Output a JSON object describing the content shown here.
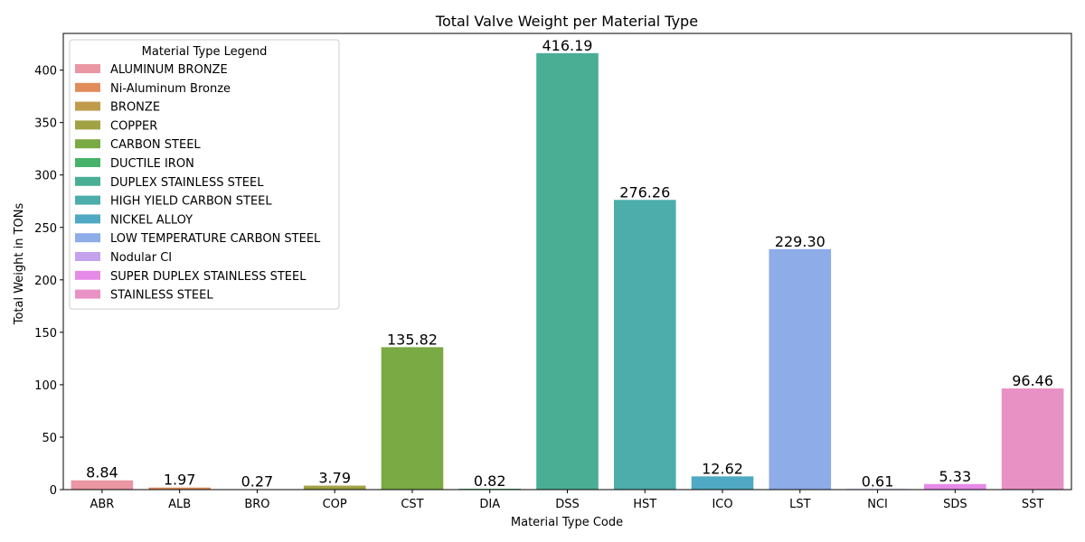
{
  "chart_data": {
    "type": "bar",
    "title": "Total Valve Weight per Material Type",
    "xlabel": "Material Type Code",
    "ylabel": "Total Weight in TONs",
    "ylim": [
      0,
      435
    ],
    "yticks": [
      0,
      50,
      100,
      150,
      200,
      250,
      300,
      350,
      400
    ],
    "grid": false,
    "categories": [
      "ABR",
      "ALB",
      "BRO",
      "COP",
      "CST",
      "DIA",
      "DSS",
      "HST",
      "ICO",
      "LST",
      "NCI",
      "SDS",
      "SST"
    ],
    "values": [
      8.84,
      1.97,
      0.27,
      3.79,
      135.82,
      0.82,
      416.19,
      276.26,
      12.62,
      229.3,
      0.61,
      5.33,
      96.46
    ],
    "data_labels": [
      "8.84",
      "1.97",
      "0.27",
      "3.79",
      "135.82",
      "0.82",
      "416.19",
      "276.26",
      "12.62",
      "229.30",
      "0.61",
      "5.33",
      "96.46"
    ],
    "colors": [
      "#ea96a3",
      "#e08c5b",
      "#c19b4c",
      "#a1a244",
      "#7aaa43",
      "#47b269",
      "#4aae95",
      "#4cadaa",
      "#4fa9c4",
      "#8dace8",
      "#c4a2ee",
      "#e68ae8",
      "#e891c4"
    ],
    "legend": {
      "title": "Material Type Legend",
      "position": "upper-left",
      "entries": [
        "ALUMINUM BRONZE",
        "Ni-Aluminum Bronze",
        "BRONZE",
        "COPPER",
        "CARBON STEEL",
        "DUCTILE IRON",
        "DUPLEX STAINLESS STEEL",
        "HIGH YIELD CARBON STEEL",
        "NICKEL ALLOY",
        "LOW TEMPERATURE CARBON STEEL",
        "Nodular CI",
        "SUPER DUPLEX STAINLESS STEEL",
        "STAINLESS STEEL"
      ]
    }
  }
}
